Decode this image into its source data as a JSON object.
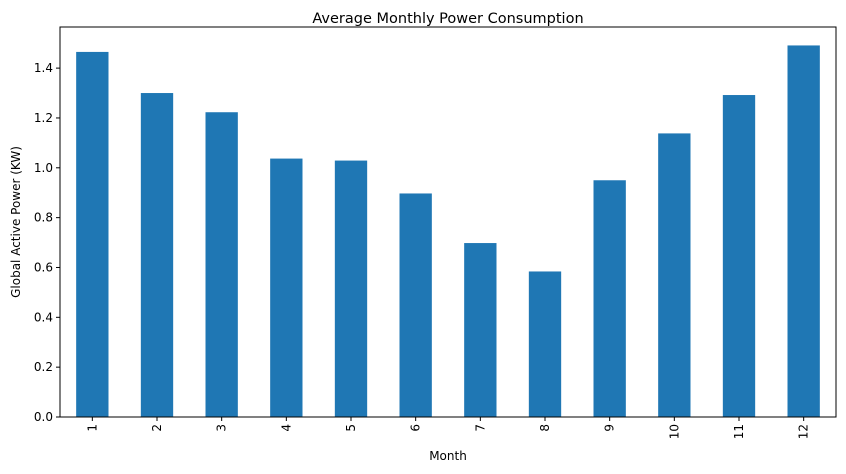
{
  "chart_data": {
    "type": "bar",
    "title": "Average Monthly Power Consumption",
    "xlabel": "Month",
    "ylabel": "Global Active Power (KW)",
    "categories": [
      "1",
      "2",
      "3",
      "4",
      "5",
      "6",
      "7",
      "8",
      "9",
      "10",
      "11",
      "12"
    ],
    "values": [
      1.465,
      1.3,
      1.223,
      1.037,
      1.029,
      0.897,
      0.698,
      0.584,
      0.95,
      1.138,
      1.292,
      1.491
    ],
    "ylim": [
      0,
      1.565
    ],
    "yticks": [
      "0.0",
      "0.2",
      "0.4",
      "0.6",
      "0.8",
      "1.0",
      "1.2",
      "1.4"
    ],
    "bar_color": "#1f77b4",
    "grid": false,
    "x_tick_rotation": "vertical"
  }
}
